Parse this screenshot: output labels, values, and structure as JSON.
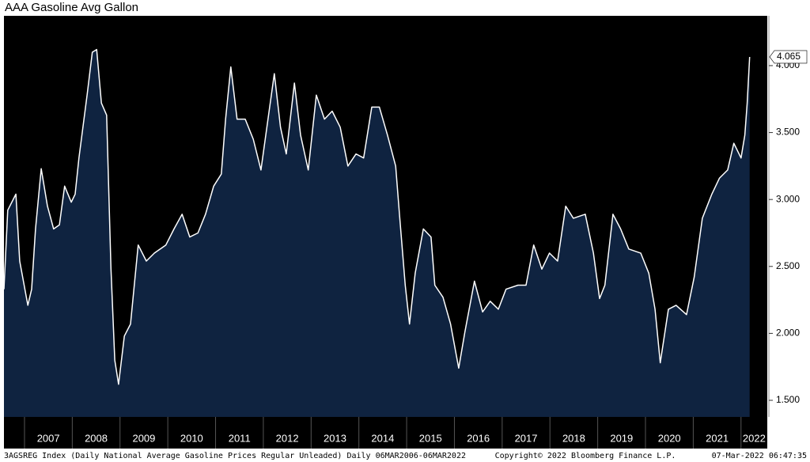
{
  "chart_data": {
    "type": "area",
    "title": "AAA Gasoline Avg Gallon",
    "footer_left": "3AGSREG Index (Daily National Average Gasoline Prices Regular Unleaded)  Daily 06MAR2006-06MAR2022",
    "footer_center": "Copyright© 2022 Bloomberg Finance L.P.",
    "footer_right": "07-Mar-2022 06:47:35",
    "color": "#ffffff",
    "fill_color": "#0f2340",
    "x": [
      2006.57,
      2006.65,
      2006.82,
      2006.9,
      2007.07,
      2007.15,
      2007.23,
      2007.35,
      2007.48,
      2007.61,
      2007.73,
      2007.84,
      2007.98,
      2008.06,
      2008.14,
      2008.31,
      2008.42,
      2008.51,
      2008.61,
      2008.72,
      2008.81,
      2008.89,
      2008.97,
      2009.09,
      2009.22,
      2009.38,
      2009.55,
      2009.72,
      2009.96,
      2010.13,
      2010.3,
      2010.46,
      2010.63,
      2010.79,
      2010.96,
      2011.12,
      2011.21,
      2011.32,
      2011.45,
      2011.62,
      2011.79,
      2011.95,
      2012.12,
      2012.23,
      2012.36,
      2012.48,
      2012.65,
      2012.78,
      2012.94,
      2013.11,
      2013.28,
      2013.44,
      2013.61,
      2013.77,
      2013.94,
      2014.1,
      2014.27,
      2014.43,
      2014.6,
      2014.77,
      2014.85,
      2014.97,
      2015.06,
      2015.18,
      2015.35,
      2015.51,
      2015.59,
      2015.76,
      2015.92,
      2016.09,
      2016.22,
      2016.42,
      2016.59,
      2016.75,
      2016.92,
      2017.08,
      2017.33,
      2017.5,
      2017.66,
      2017.83,
      2017.99,
      2018.16,
      2018.33,
      2018.49,
      2018.74,
      2018.91,
      2019.04,
      2019.15,
      2019.32,
      2019.48,
      2019.65,
      2019.9,
      2020.07,
      2020.2,
      2020.31,
      2020.48,
      2020.64,
      2020.86,
      2021.02,
      2021.19,
      2021.39,
      2021.55,
      2021.72,
      2021.85,
      2022.0,
      2022.08,
      2022.13,
      2022.18
    ],
    "values": [
      2.33,
      2.92,
      3.04,
      2.54,
      2.21,
      2.33,
      2.78,
      3.23,
      2.95,
      2.78,
      2.81,
      3.1,
      2.98,
      3.04,
      3.31,
      3.78,
      4.1,
      4.12,
      3.72,
      3.63,
      2.48,
      1.8,
      1.62,
      1.98,
      2.07,
      2.66,
      2.54,
      2.6,
      2.66,
      2.78,
      2.89,
      2.72,
      2.75,
      2.89,
      3.1,
      3.19,
      3.6,
      3.99,
      3.6,
      3.6,
      3.45,
      3.22,
      3.66,
      3.94,
      3.54,
      3.34,
      3.87,
      3.48,
      3.22,
      3.78,
      3.6,
      3.66,
      3.54,
      3.25,
      3.34,
      3.31,
      3.69,
      3.69,
      3.48,
      3.25,
      2.89,
      2.36,
      2.07,
      2.45,
      2.78,
      2.72,
      2.36,
      2.27,
      2.07,
      1.74,
      2.01,
      2.39,
      2.16,
      2.24,
      2.18,
      2.33,
      2.36,
      2.36,
      2.66,
      2.48,
      2.6,
      2.54,
      2.95,
      2.86,
      2.89,
      2.6,
      2.26,
      2.36,
      2.89,
      2.78,
      2.63,
      2.6,
      2.45,
      2.18,
      1.78,
      2.18,
      2.21,
      2.14,
      2.42,
      2.86,
      3.04,
      3.16,
      3.22,
      3.42,
      3.31,
      3.48,
      3.72,
      4.065
    ],
    "xlim": [
      2006.57,
      2022.55
    ],
    "ylim": [
      1.376,
      4.372
    ],
    "xticks": [
      2007,
      2008,
      2009,
      2010,
      2011,
      2012,
      2013,
      2014,
      2015,
      2016,
      2017,
      2018,
      2019,
      2020,
      2021,
      2022
    ],
    "yticks": [
      {
        "value": 1.5,
        "label": "1.500"
      },
      {
        "value": 2,
        "label": "2.000"
      },
      {
        "value": 2.5,
        "label": "2.500"
      },
      {
        "value": 3,
        "label": "3.000"
      },
      {
        "value": 3.5,
        "label": "3.500"
      },
      {
        "value": 4,
        "label": "4.000"
      }
    ]
  }
}
